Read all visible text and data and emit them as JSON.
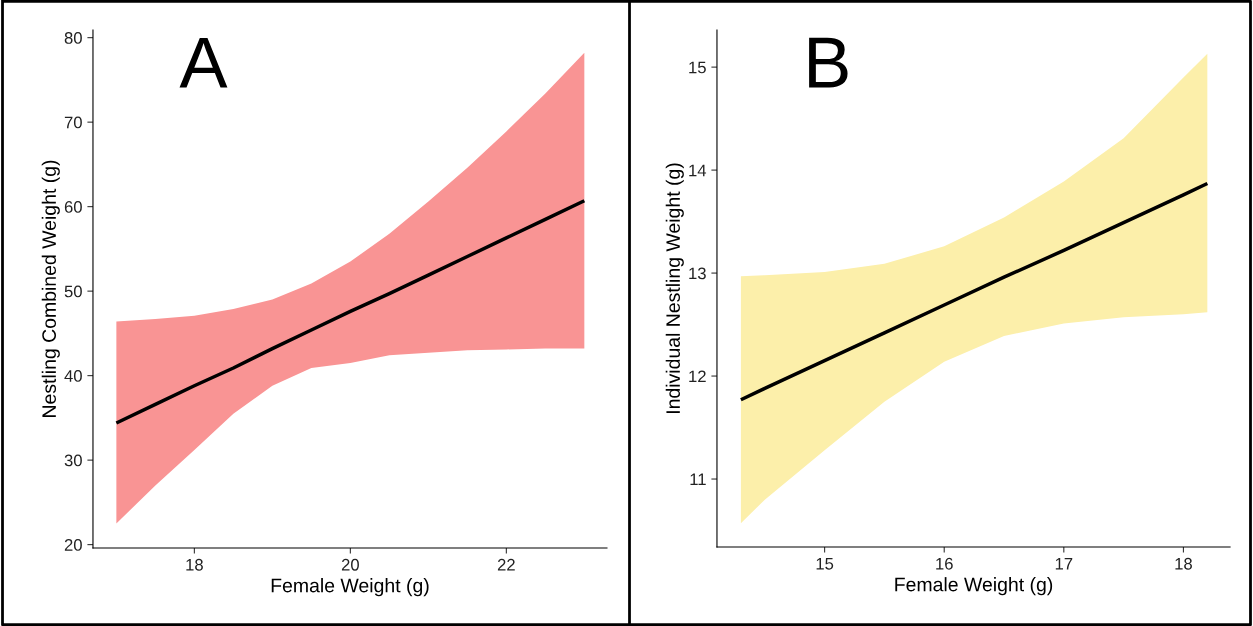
{
  "chart_data": [
    {
      "type": "line",
      "annotations": [
        "A"
      ],
      "xlabel": "Female Weight (g)",
      "ylabel": "Nestling Combined Weight (g)",
      "xlim": [
        16.7,
        23.29
      ],
      "ylim": [
        19.6,
        80.9
      ],
      "xticks": [
        18,
        20,
        22
      ],
      "yticks": [
        20,
        30,
        40,
        50,
        60,
        70,
        80
      ],
      "grid": false,
      "legend": false,
      "colors": [
        "#f99494"
      ],
      "series": [
        {
          "color": "#000000",
          "x": [
            17,
            17.5,
            18,
            18.5,
            19,
            19.5,
            20,
            20.5,
            21,
            21.5,
            22,
            22.5,
            23
          ],
          "values": [
            34.4,
            36.6,
            38.8,
            40.9,
            43.2,
            45.4,
            47.6,
            49.7,
            51.9,
            54.1,
            56.3,
            58.5,
            60.7
          ],
          "upper": [
            46.4,
            46.7,
            47.1,
            47.9,
            49.0,
            50.9,
            53.5,
            56.8,
            60.6,
            64.6,
            68.9,
            73.4,
            78.2
          ],
          "lower": [
            22.5,
            27.0,
            31.2,
            35.5,
            38.8,
            40.9,
            41.5,
            42.4,
            42.7,
            43.0,
            43.1,
            43.2,
            43.2
          ]
        }
      ]
    },
    {
      "type": "line",
      "annotations": [
        "B"
      ],
      "xlabel": "Female Weight (g)",
      "ylabel": "Individual Nestling Weight (g)",
      "xlim": [
        14.1,
        18.39
      ],
      "ylim": [
        10.34,
        15.36
      ],
      "xticks": [
        15,
        16,
        17,
        18
      ],
      "yticks": [
        11,
        12,
        13,
        14,
        15
      ],
      "grid": false,
      "legend": false,
      "colors": [
        "#fcefaa"
      ],
      "series": [
        {
          "color": "#000000",
          "x": [
            14.3,
            14.5,
            15,
            15.5,
            16,
            16.5,
            17,
            17.5,
            18,
            18.2
          ],
          "values": [
            11.77,
            11.88,
            12.15,
            12.42,
            12.69,
            12.96,
            13.22,
            13.49,
            13.76,
            13.87
          ],
          "upper": [
            12.97,
            12.98,
            13.01,
            13.09,
            13.26,
            13.54,
            13.89,
            14.31,
            14.9,
            15.13
          ],
          "lower": [
            10.57,
            10.8,
            11.28,
            11.75,
            12.14,
            12.39,
            12.51,
            12.57,
            12.6,
            12.62
          ]
        }
      ]
    }
  ]
}
